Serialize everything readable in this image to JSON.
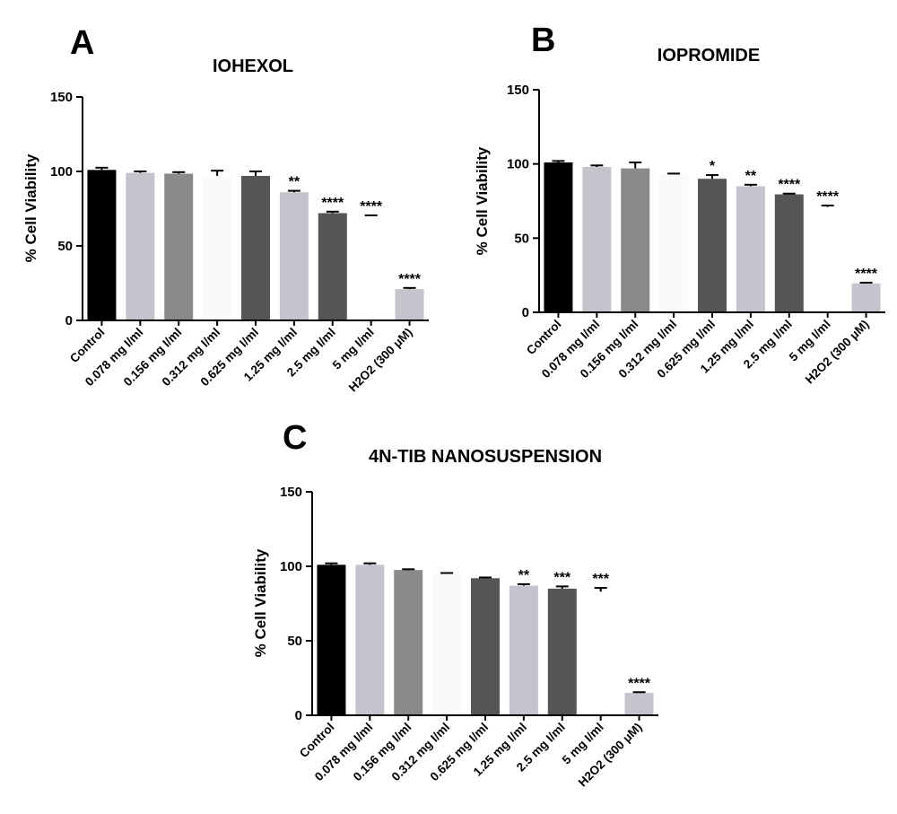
{
  "panel_letters": [
    "A",
    "B",
    "C"
  ],
  "colors": {
    "black": "#000000",
    "light_gray": "#c4c4cc",
    "mid_gray": "#8a8a8a",
    "very_light": "#fafafa",
    "dark_gray": "#555555",
    "white": "#ffffff"
  },
  "chart_data": [
    {
      "type": "bar",
      "panel": "A",
      "title": "IOHEXOL",
      "xlabel": "",
      "ylabel": "% Cell Viability",
      "ylim": [
        0,
        150
      ],
      "yticks": [
        0,
        50,
        100,
        150
      ],
      "categories": [
        "Control",
        "0.078 mg I/ml",
        "0.156 mg I/ml",
        "0.312 mg I/ml",
        "0.625  mg I/ml",
        "1.25  mg I/ml",
        "2.5  mg I/ml",
        "5  mg I/ml",
        "H2O2 (300 μM)"
      ],
      "values": [
        101,
        99,
        98.5,
        97,
        97,
        86,
        72,
        70,
        21
      ],
      "errors": [
        1.5,
        1,
        1,
        3.5,
        3,
        1,
        1,
        0.5,
        0.8
      ],
      "fill_keys": [
        "black",
        "light_gray",
        "mid_gray",
        "very_light",
        "dark_gray",
        "light_gray",
        "dark_gray",
        "white",
        "light_gray"
      ],
      "significance": [
        "",
        "",
        "",
        "",
        "",
        "**",
        "****",
        "****",
        "****"
      ],
      "grid": false,
      "legend": "none"
    },
    {
      "type": "bar",
      "panel": "B",
      "title": "IOPROMIDE",
      "xlabel": "",
      "ylabel": "% Cell Viability",
      "ylim": [
        0,
        150
      ],
      "yticks": [
        0,
        50,
        100,
        150
      ],
      "categories": [
        "Control",
        "0.078 mg I/ml",
        "0.156 mg I/ml",
        "0.312 mg I/ml",
        "0.625  mg I/ml",
        "1.25  mg I/ml",
        "2.5  mg I/ml",
        "5  mg I/ml",
        "H2O2 (300 μM)"
      ],
      "values": [
        101,
        98,
        97,
        93,
        90,
        85,
        79.5,
        71,
        19.5
      ],
      "errors": [
        1,
        1,
        4,
        0.5,
        2.5,
        1,
        0.5,
        1,
        0.5
      ],
      "fill_keys": [
        "black",
        "light_gray",
        "mid_gray",
        "very_light",
        "dark_gray",
        "light_gray",
        "dark_gray",
        "white",
        "light_gray"
      ],
      "significance": [
        "",
        "",
        "",
        "",
        "*",
        "**",
        "****",
        "****",
        "****"
      ],
      "grid": false,
      "legend": "none"
    },
    {
      "type": "bar",
      "panel": "C",
      "title": "4N-TIB NANOSUSPENSION",
      "xlabel": "",
      "ylabel": "% Cell Viability",
      "ylim": [
        0,
        150
      ],
      "yticks": [
        0,
        50,
        100,
        150
      ],
      "categories": [
        "Control",
        "0.078 mg I/ml",
        "0.156 mg I/ml",
        "0.312 mg I/ml",
        "0.625  mg I/ml",
        "1.25  mg I/ml",
        "2.5  mg I/ml",
        "5  mg I/ml",
        "H2O2 (300 μM)"
      ],
      "values": [
        101,
        101,
        97.5,
        95,
        92,
        87,
        85,
        83,
        15
      ],
      "errors": [
        1,
        1,
        0.5,
        0.5,
        0.5,
        1,
        1.5,
        2.5,
        0.5
      ],
      "fill_keys": [
        "black",
        "light_gray",
        "mid_gray",
        "very_light",
        "dark_gray",
        "light_gray",
        "dark_gray",
        "white",
        "light_gray"
      ],
      "significance": [
        "",
        "",
        "",
        "",
        "",
        "**",
        "***",
        "***",
        "****"
      ],
      "grid": false,
      "legend": "none"
    }
  ]
}
